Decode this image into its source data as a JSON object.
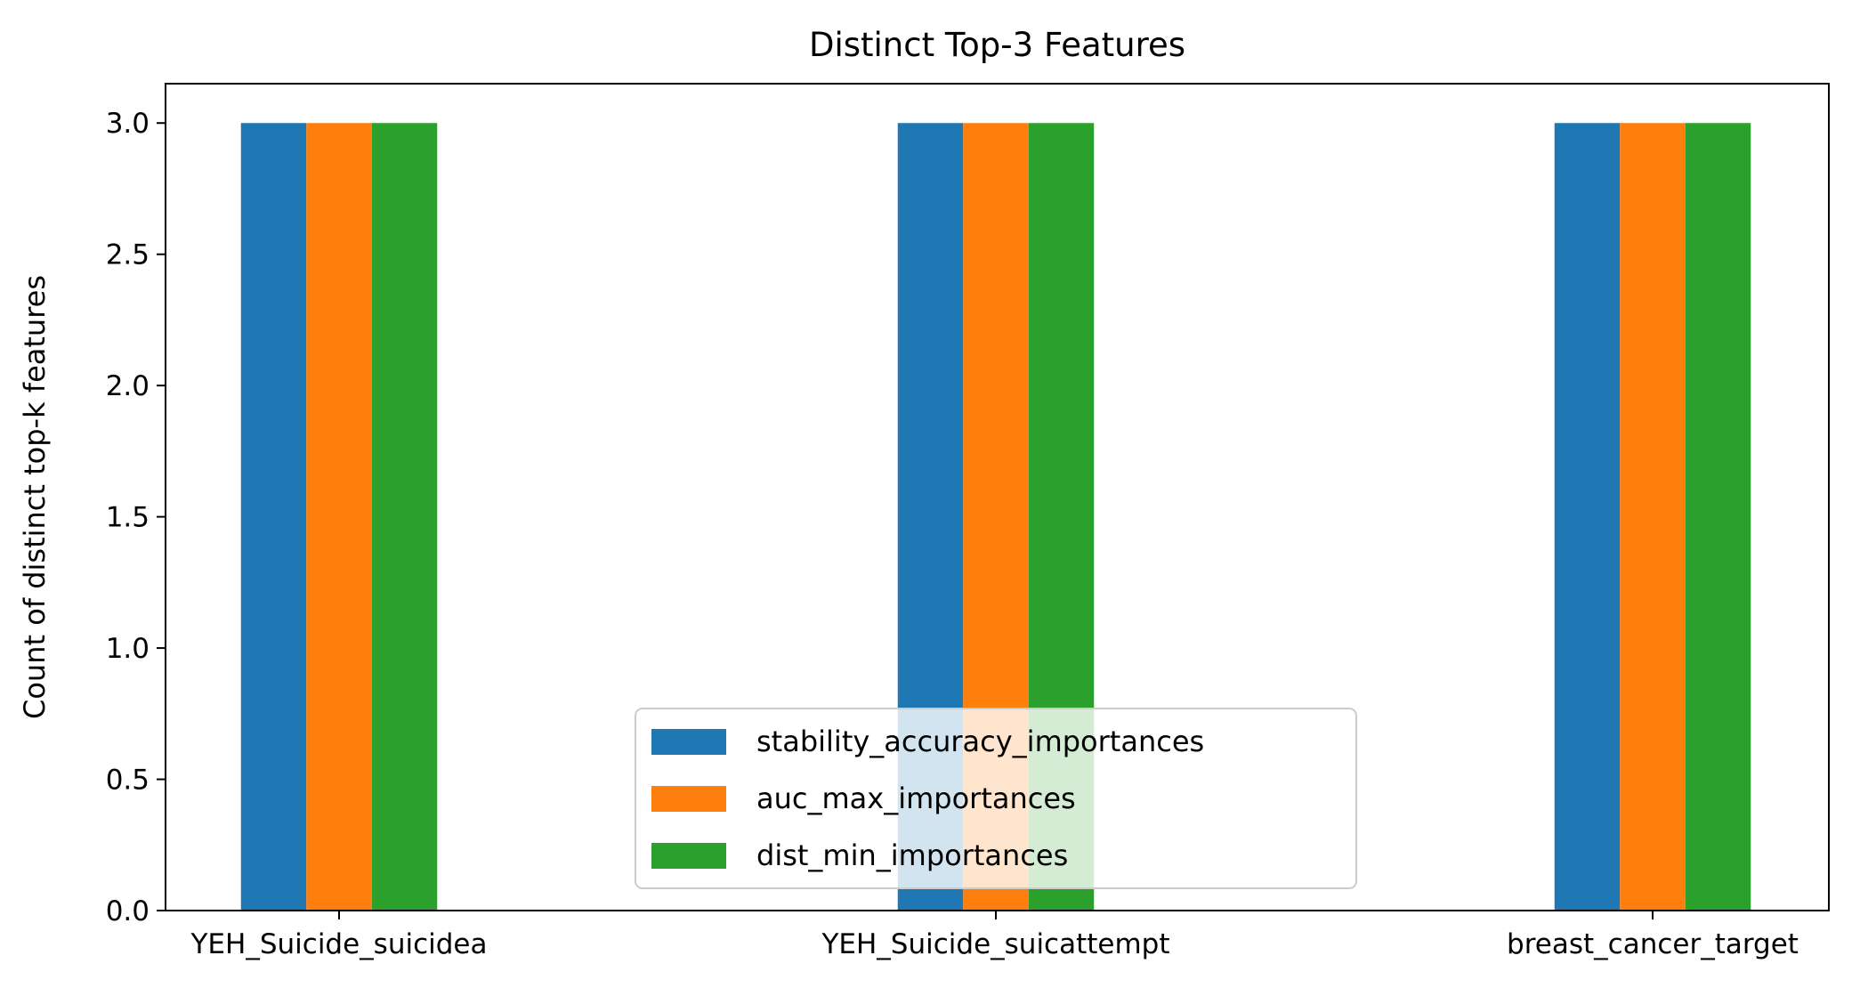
{
  "chart_data": {
    "type": "bar",
    "title": "Distinct Top-3 Features",
    "xlabel": "",
    "ylabel": "Count of distinct top-k features",
    "categories": [
      "YEH_Suicide_suicidea",
      "YEH_Suicide_suicattempt",
      "breast_cancer_target"
    ],
    "series": [
      {
        "name": "stability_accuracy_importances",
        "values": [
          3,
          3,
          3
        ],
        "color": "#1f77b4"
      },
      {
        "name": "auc_max_importances",
        "values": [
          3,
          3,
          3
        ],
        "color": "#ff7f0e"
      },
      {
        "name": "dist_min_importances",
        "values": [
          3,
          3,
          3
        ],
        "color": "#2ca02c"
      }
    ],
    "ylim": [
      0,
      3.15
    ],
    "yticks": [
      "0.0",
      "0.5",
      "1.0",
      "1.5",
      "2.0",
      "2.5",
      "3.0"
    ],
    "grid": false,
    "legend_position": "lower-center"
  }
}
